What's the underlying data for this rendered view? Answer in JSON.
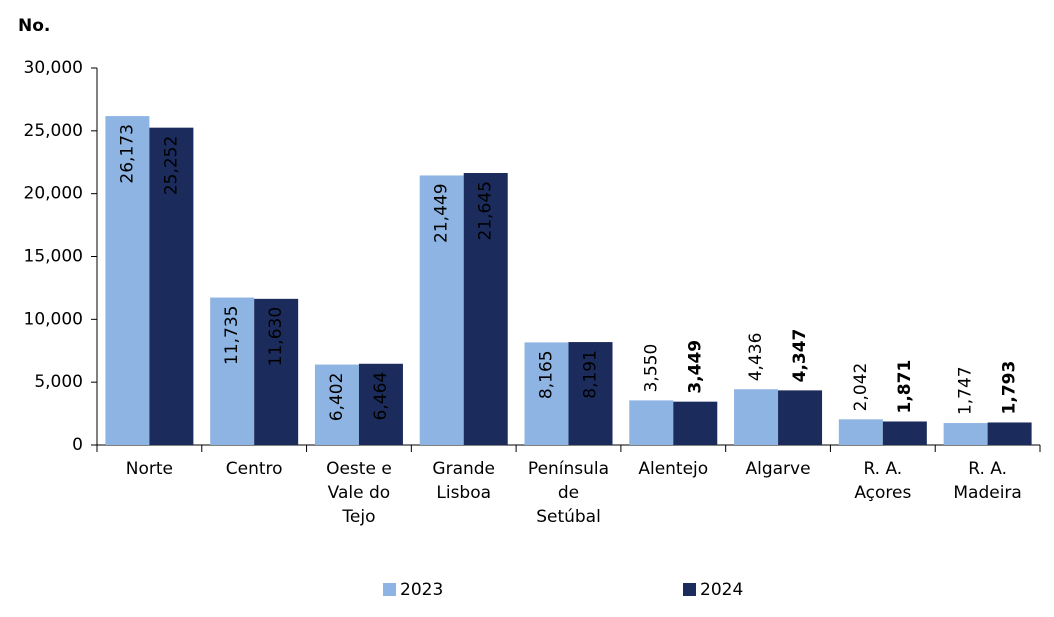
{
  "chart_data": {
    "type": "bar",
    "y_label": "No.",
    "categories": [
      "Norte",
      "Centro",
      "Oeste e Vale do Tejo",
      "Grande Lisboa",
      "Península de Setúbal",
      "Alentejo",
      "Algarve",
      "R. A. Açores",
      "R. A. Madeira"
    ],
    "series": [
      {
        "name": "2023",
        "color": "#8db4e2",
        "values": [
          26173,
          11735,
          6402,
          21449,
          8165,
          3550,
          4436,
          2042,
          1747
        ],
        "value_labels": [
          "26,173",
          "11,735",
          "6,402",
          "21,449",
          "8,165",
          "3,550",
          "4,436",
          "2,042",
          "1,747"
        ]
      },
      {
        "name": "2024",
        "color": "#1b2b5c",
        "values": [
          25252,
          11630,
          6464,
          21645,
          8191,
          3449,
          4347,
          1871,
          1793
        ],
        "value_labels": [
          "25,252",
          "11,630",
          "6,464",
          "21,645",
          "8,191",
          "3,449",
          "4,347",
          "1,871",
          "1,793"
        ]
      }
    ],
    "ylim": [
      0,
      30000
    ],
    "yticks": [
      0,
      {
        "value": 5000,
        "label": "5,000"
      },
      {
        "value": 10000,
        "label": "10,000"
      },
      {
        "value": 15000,
        "label": "15,000"
      },
      {
        "value": 20000,
        "label": "20,000"
      },
      {
        "value": 25000,
        "label": "25,000"
      },
      {
        "value": 30000,
        "label": "30,000"
      }
    ],
    "grid": false,
    "legend": "bottom"
  }
}
